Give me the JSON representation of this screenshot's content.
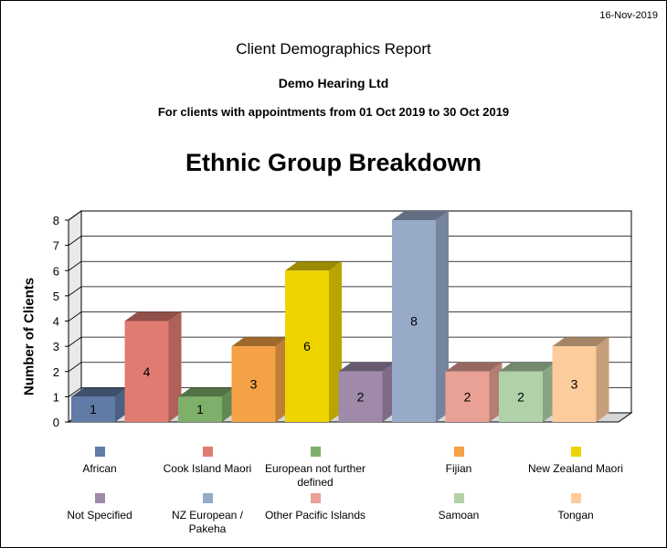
{
  "report": {
    "date": "16-Nov-2019",
    "title": "Client Demographics Report",
    "company": "Demo Hearing Ltd",
    "subtitle": "For clients with appointments from 01 Oct 2019 to 30 Oct 2019"
  },
  "chart_data": {
    "type": "bar",
    "title": "Ethnic Group Breakdown",
    "xlabel": "",
    "ylabel": "Number of Clients",
    "ylim": [
      0,
      8
    ],
    "yticks": [
      0,
      1,
      2,
      3,
      4,
      5,
      6,
      7,
      8
    ],
    "grid": true,
    "legend_position": "bottom",
    "categories": [
      "African",
      "Cook Island Maori",
      "European not further defined",
      "Fijian",
      "New Zealand Maori",
      "Not Specified",
      "NZ European / Pakeha",
      "Other Pacific Islands",
      "Samoan",
      "Tongan"
    ],
    "values": [
      1,
      4,
      1,
      3,
      6,
      2,
      8,
      2,
      2,
      3
    ],
    "colors": [
      "#5f7ba6",
      "#e07b72",
      "#7fb06a",
      "#f5a146",
      "#edd400",
      "#9f8aaa",
      "#97aac8",
      "#e9a095",
      "#b1d2a8",
      "#fdcc9c"
    ],
    "legend_labels": [
      "African",
      "Cook Island Maori",
      "European not further\ndefined",
      "Fijian",
      "New Zealand Maori",
      "Not Specified",
      "NZ European / Pakeha",
      "Other Pacific Islands",
      "Samoan",
      "Tongan"
    ]
  }
}
